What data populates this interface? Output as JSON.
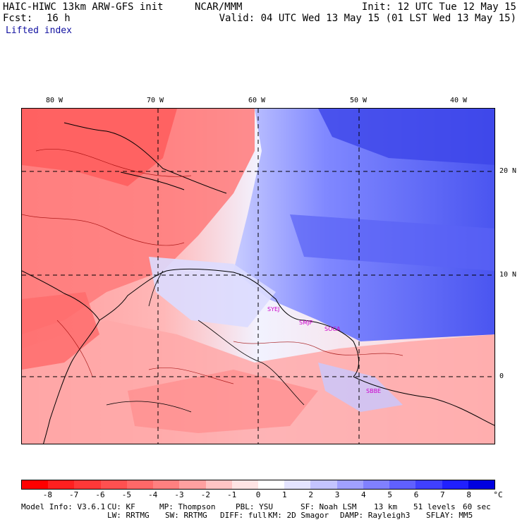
{
  "header": {
    "title": "HAIC-HIWC 13km ARW-GFS init",
    "org": "NCAR/MMM",
    "init": "Init: 12 UTC Tue 12 May 15",
    "fcst_label": "Fcst:",
    "fcst_value": "16 h",
    "valid": "Valid: 04 UTC Wed 13 May 15 (01 LST Wed 13 May 15)",
    "field": "Lifted index"
  },
  "map": {
    "lon_labels": [
      "80 W",
      "70 W",
      "60 W",
      "50 W",
      "40 W"
    ],
    "lat_labels": [
      "20 N",
      "10 N",
      "0"
    ],
    "stations": [
      "SYEJ",
      "SMJP",
      "SOCA",
      "SBBE"
    ]
  },
  "colorbar": {
    "labels": [
      "-8",
      "-7",
      "-6",
      "-5",
      "-4",
      "-3",
      "-2",
      "-1",
      "0",
      "1",
      "2",
      "3",
      "4",
      "5",
      "6",
      "7",
      "8"
    ],
    "unit": "°C",
    "colors": [
      "#ff0000",
      "#ff2020",
      "#ff3838",
      "#ff5050",
      "#ff6868",
      "#ff8080",
      "#ffa0a0",
      "#ffc4c4",
      "#ffe4e4",
      "#ffffff",
      "#e4e4ff",
      "#c4c4ff",
      "#a0a0ff",
      "#8080ff",
      "#6060ff",
      "#4040ff",
      "#2020ff",
      "#0000e0"
    ]
  },
  "footer": {
    "line1": [
      "Model Info: V3.6.1",
      "CU: KF",
      "MP: Thompson",
      "PBL: YSU",
      "SF: Noah LSM",
      "13 km",
      "51 levels",
      "60 sec"
    ],
    "line2": [
      "LW: RRTMG",
      "SW: RRTMG",
      "DIFF: full",
      "KM: 2D Smagor",
      "DAMP: Rayleigh3",
      "SFLAY: MM5"
    ]
  }
}
